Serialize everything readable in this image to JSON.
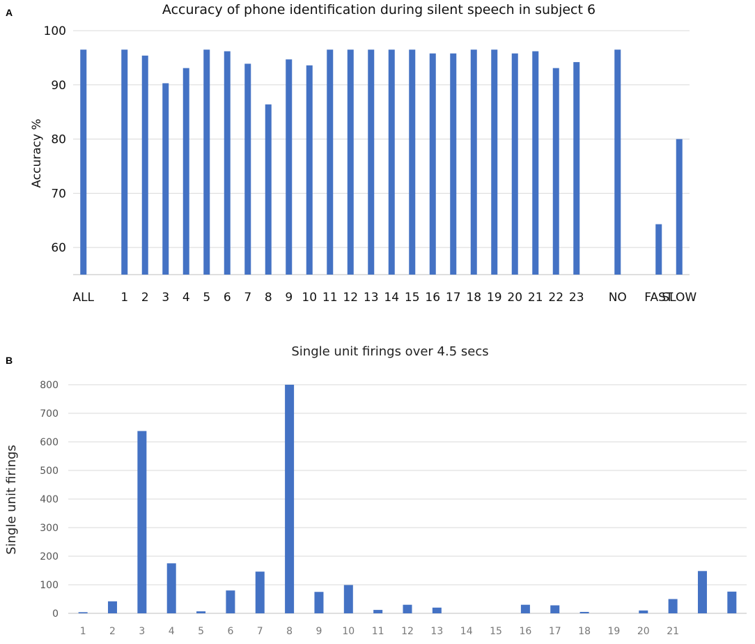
{
  "colors": {
    "bar": "#4472C4",
    "grid": "#d9d9d9",
    "axis": "#bfbfbf"
  },
  "chart_data": [
    {
      "panel": "A",
      "type": "bar",
      "title": "Accuracy of phone identification during silent speech in subject 6",
      "xlabel": "",
      "ylabel": "Accuracy %",
      "ylim": [
        55,
        100
      ],
      "yticks": [
        60,
        70,
        80,
        90,
        100
      ],
      "grid": true,
      "categories": [
        "ALL",
        "",
        "1",
        "2",
        "3",
        "4",
        "5",
        "6",
        "7",
        "8",
        "9",
        "10",
        "11",
        "12",
        "13",
        "14",
        "15",
        "16",
        "17",
        "18",
        "19",
        "20",
        "21",
        "22",
        "23",
        "",
        "NO",
        "",
        "FAST",
        "SLOW"
      ],
      "values": [
        96.5,
        null,
        96.5,
        95.4,
        90.3,
        93.1,
        96.5,
        96.2,
        93.9,
        86.4,
        94.7,
        93.6,
        96.5,
        96.5,
        96.5,
        96.5,
        96.5,
        95.8,
        95.8,
        96.5,
        96.5,
        95.8,
        96.2,
        93.1,
        94.2,
        null,
        96.5,
        null,
        64.3,
        80.0
      ]
    },
    {
      "panel": "B",
      "type": "bar",
      "title": "Single unit firings over 4.5 secs",
      "xlabel": "",
      "ylabel": "Single unit firings",
      "ylim": [
        0,
        800
      ],
      "yticks": [
        0,
        100,
        200,
        300,
        400,
        500,
        600,
        700,
        800
      ],
      "grid": true,
      "categories": [
        "1",
        "2",
        "3",
        "4",
        "5",
        "6",
        "7",
        "8",
        "9",
        "10",
        "11",
        "12",
        "13",
        "14",
        "15",
        "16",
        "17",
        "18",
        "19",
        "20",
        "21",
        "",
        ""
      ],
      "values": [
        4,
        42,
        638,
        175,
        7,
        80,
        146,
        800,
        75,
        99,
        12,
        30,
        20,
        0,
        0,
        30,
        28,
        5,
        0,
        10,
        50,
        148,
        76
      ]
    }
  ]
}
